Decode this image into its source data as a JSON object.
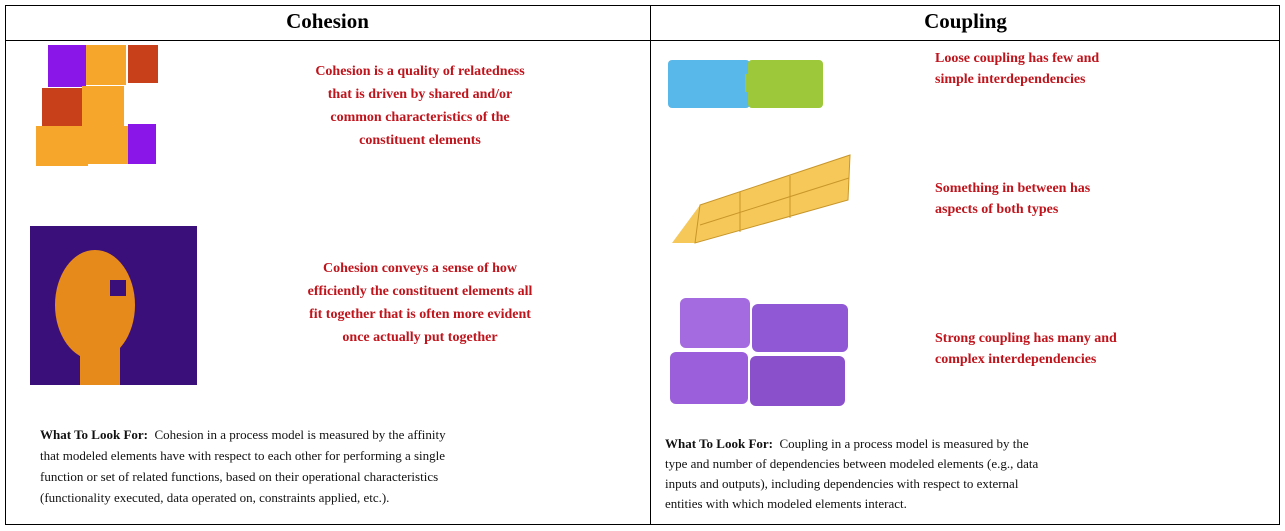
{
  "table": {
    "headers": [
      "Cohesion",
      "Coupling"
    ],
    "cohesion": {
      "captions": [
        [
          "Cohesion is a quality of relatedness",
          "that is driven by shared and/or",
          "common characteristics of the",
          "constituent elements"
        ],
        [
          "Cohesion conveys a sense of how",
          "efficiently the constituent elements all",
          "fit together that is often more evident",
          "once actually put together"
        ]
      ],
      "what_to_look_for": {
        "label": "What To Look For:",
        "lines": [
          "Cohesion in a process model is measured by the affinity",
          "that modeled elements have with respect to each other for performing a single",
          "function or set of related functions, based on their operational characteristics",
          "(functionality executed, data operated on, constraints applied, etc.)."
        ]
      }
    },
    "coupling": {
      "captions": [
        [
          "Loose coupling has few and",
          "simple interdependencies"
        ],
        [
          "Something in between has",
          "aspects of both types"
        ],
        [
          "Strong coupling has many and",
          "complex interdependencies"
        ]
      ],
      "what_to_look_for": {
        "label": "What To Look For:",
        "lines": [
          "Coupling in a process model is measured by the",
          "type and number of dependencies between modeled elements (e.g., data",
          "inputs and outputs), including dependencies with respect to external",
          "entities with which modeled elements interact."
        ]
      }
    }
  }
}
